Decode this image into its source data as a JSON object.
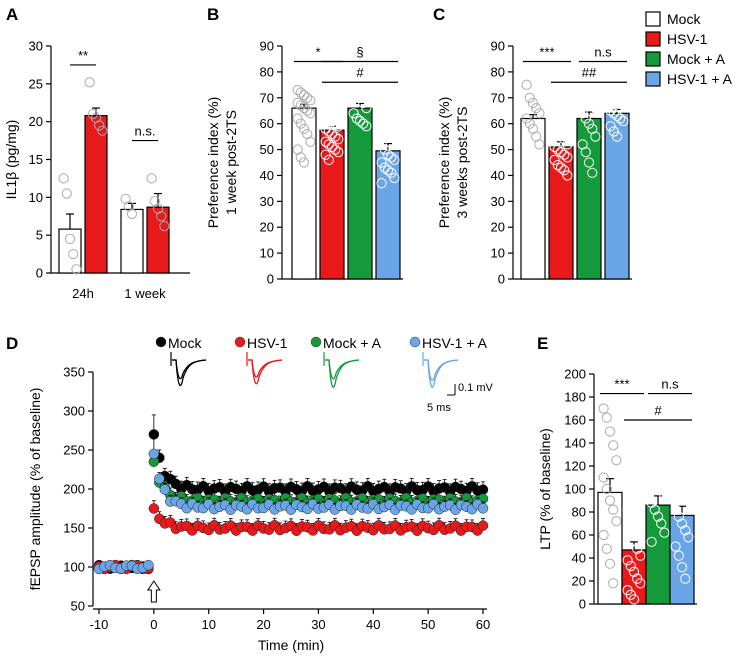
{
  "colors": {
    "mock": "#ffffff",
    "hsv1": "#e8191b",
    "mock_a": "#159a3b",
    "hsv1_a": "#6aa5e8",
    "mock_dot": "#000000"
  },
  "legend": {
    "items": [
      {
        "label": "Mock",
        "color": "#ffffff"
      },
      {
        "label": "HSV-1",
        "color": "#e8191b"
      },
      {
        "label": "Mock + A",
        "color": "#159a3b"
      },
      {
        "label": "HSV-1 + A",
        "color": "#6aa5e8"
      }
    ]
  },
  "panels": {
    "A": {
      "letter": "A"
    },
    "B": {
      "letter": "B"
    },
    "C": {
      "letter": "C"
    },
    "D": {
      "letter": "D",
      "trace_legend": [
        "Mock",
        "HSV-1",
        "Mock + A",
        "HSV-1 + A"
      ],
      "scalebar_v": "0.1 mV",
      "scalebar_h": "5 ms"
    },
    "E": {
      "letter": "E"
    }
  },
  "chart_data": [
    {
      "id": "A",
      "type": "bar",
      "ylabel": "IL1β (pg/mg)",
      "ylim": [
        0,
        30
      ],
      "yticks": [
        0,
        5,
        10,
        15,
        20,
        25,
        30
      ],
      "categories": [
        "24h",
        "1 week"
      ],
      "series": [
        {
          "name": "Mock",
          "values": [
            5.8,
            8.4
          ],
          "errors": [
            2.0,
            0.8
          ],
          "points": [
            [
              12.5,
              10.5,
              4.5,
              2.5,
              0.5
            ],
            [
              9.8,
              8.8,
              7.8
            ]
          ]
        },
        {
          "name": "HSV-1",
          "values": [
            20.8,
            8.7
          ],
          "errors": [
            1.0,
            1.8
          ],
          "points": [
            [
              25.2,
              21.0,
              20.5,
              19.5,
              18.8
            ],
            [
              12.5,
              9.5,
              8.5,
              7.5,
              6.2
            ]
          ]
        }
      ],
      "annotations": [
        {
          "text": "**",
          "between": [
            "24h Mock",
            "24h HSV-1"
          ],
          "y": 27.5
        },
        {
          "text": "n.s.",
          "between": [
            "1 week Mock",
            "1 week HSV-1"
          ],
          "y": 17.5
        }
      ]
    },
    {
      "id": "B",
      "type": "bar",
      "ylabel": "Preference index (%) 1 week post-2TS",
      "ylabel_lines": [
        "Preference index (%)",
        "1 week post-2TS"
      ],
      "ylim": [
        0,
        90
      ],
      "yticks": [
        0,
        10,
        20,
        30,
        40,
        50,
        60,
        70,
        80,
        90
      ],
      "categories": [
        "Mock",
        "HSV-1",
        "Mock + A",
        "HSV-1 + A"
      ],
      "values": [
        66,
        57.5,
        66,
        49.5
      ],
      "errors": [
        1.5,
        1.5,
        1.8,
        2.8
      ],
      "points": [
        [
          73,
          72,
          71,
          70,
          69,
          68,
          67,
          66,
          65,
          64,
          62,
          60,
          58,
          56,
          53,
          50,
          47,
          45
        ],
        [
          65,
          63,
          61,
          60,
          59,
          58,
          57,
          56,
          55,
          54,
          53,
          52,
          51,
          50,
          49,
          48,
          46
        ],
        [
          74,
          72,
          70,
          68,
          66,
          64,
          62,
          61,
          60,
          59
        ],
        [
          78,
          70,
          66,
          60,
          55,
          52,
          50,
          48,
          47,
          46,
          45,
          43,
          42,
          41,
          39,
          37
        ]
      ],
      "annotations": [
        {
          "text": "*",
          "from": 0,
          "to": 1,
          "y": 84
        },
        {
          "text": "§",
          "from": 1,
          "to": 3,
          "y": 84
        },
        {
          "text": "#",
          "from": 1,
          "to": 3,
          "y": 76
        }
      ]
    },
    {
      "id": "C",
      "type": "bar",
      "ylabel": "Preference index (%) 3 weeks post-2TS",
      "ylabel_lines": [
        "Preference index (%)",
        "3 weeks post-2TS"
      ],
      "ylim": [
        0,
        90
      ],
      "yticks": [
        0,
        10,
        20,
        30,
        40,
        50,
        60,
        70,
        80,
        90
      ],
      "categories": [
        "Mock",
        "HSV-1",
        "Mock + A",
        "HSV-1 + A"
      ],
      "values": [
        62,
        51,
        62,
        64
      ],
      "errors": [
        1.5,
        2.0,
        2.5,
        1.5
      ],
      "points": [
        [
          75,
          70,
          68,
          66,
          64,
          62,
          60,
          58,
          55,
          52
        ],
        [
          60,
          58,
          56,
          54,
          52,
          51,
          50,
          49,
          48,
          47,
          46,
          44,
          43,
          42,
          40
        ],
        [
          75,
          72,
          70,
          68,
          66,
          64,
          62,
          60,
          58,
          55,
          52,
          49,
          45,
          41
        ],
        [
          75,
          73,
          71,
          69,
          67,
          65,
          64,
          63,
          62,
          61,
          59,
          57,
          55
        ]
      ],
      "annotations": [
        {
          "text": "***",
          "from": 0,
          "to": 1,
          "y": 84
        },
        {
          "text": "n.s",
          "from": 2,
          "to": 3,
          "y": 84
        },
        {
          "text": "##",
          "from": 1,
          "to": 3,
          "y": 76
        }
      ]
    },
    {
      "id": "D",
      "type": "scatter",
      "xlabel": "Time (min)",
      "ylabel": "fEPSP amplitude (% of baseline)",
      "xlim": [
        -10,
        60
      ],
      "xticks": [
        -10,
        0,
        10,
        20,
        30,
        40,
        50,
        60
      ],
      "ylim": [
        50,
        350
      ],
      "yticks": [
        50,
        100,
        150,
        200,
        250,
        300,
        350
      ],
      "stimulus_time": 0,
      "series": [
        {
          "name": "Mock",
          "baseline": 100,
          "peak": 270,
          "peak_error": 25,
          "plateau": 200,
          "error": 10
        },
        {
          "name": "HSV-1",
          "baseline": 100,
          "peak": 175,
          "peak_error": 10,
          "plateau": 150,
          "error": 9
        },
        {
          "name": "Mock + A",
          "baseline": 100,
          "peak": 235,
          "peak_error": 15,
          "plateau": 185,
          "error": 9
        },
        {
          "name": "HSV-1 + A",
          "baseline": 100,
          "peak": 245,
          "peak_error": 20,
          "plateau": 177,
          "error": 8
        }
      ]
    },
    {
      "id": "E",
      "type": "bar",
      "ylabel": "LTP (% of baseline)",
      "ylim": [
        0,
        200
      ],
      "yticks": [
        0,
        20,
        40,
        60,
        80,
        100,
        120,
        140,
        160,
        180,
        200
      ],
      "categories": [
        "Mock",
        "HSV-1",
        "Mock + A",
        "HSV-1 + A"
      ],
      "values": [
        97,
        47,
        86,
        77
      ],
      "errors": [
        12,
        7,
        8,
        8
      ],
      "points": [
        [
          170,
          162,
          150,
          138,
          125,
          110,
          100,
          90,
          82,
          72,
          60,
          48,
          35,
          18
        ],
        [
          82,
          70,
          55,
          48,
          42,
          38,
          33,
          28,
          22,
          18,
          12,
          8,
          4
        ],
        [
          130,
          118,
          108,
          100,
          94,
          88,
          82,
          76,
          70,
          62,
          54
        ],
        [
          148,
          125,
          110,
          98,
          90,
          82,
          76,
          70,
          64,
          58,
          50,
          42,
          32,
          22
        ]
      ],
      "annotations": [
        {
          "text": "***",
          "from": 0,
          "to": 1,
          "y": 183
        },
        {
          "text": "n.s",
          "from": 2,
          "to": 3,
          "y": 183
        },
        {
          "text": "#",
          "from": 1,
          "to": 3,
          "y": 160
        }
      ]
    }
  ]
}
